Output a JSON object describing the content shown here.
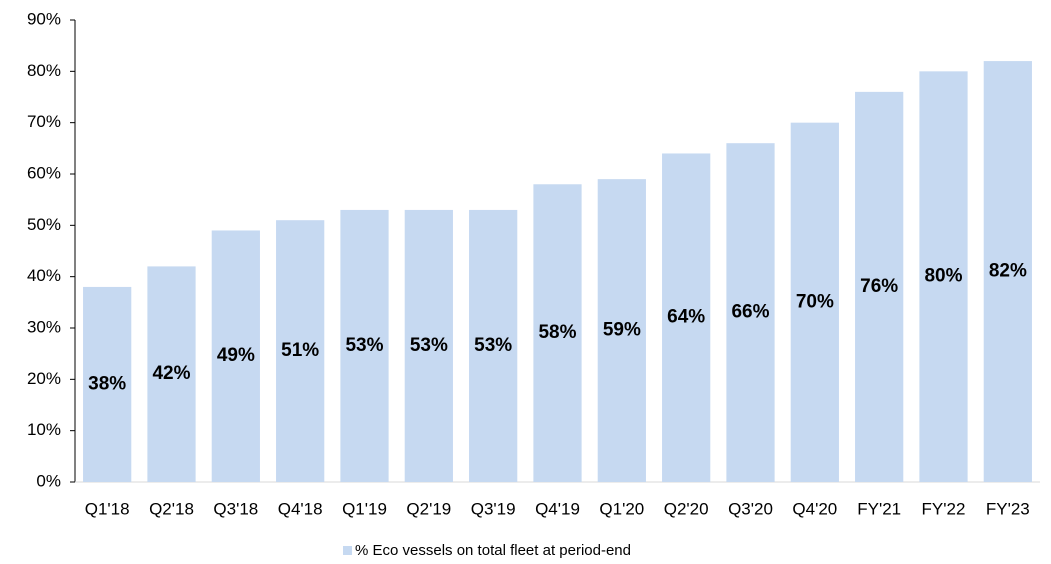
{
  "chart_data": {
    "type": "bar",
    "categories": [
      "Q1'18",
      "Q2'18",
      "Q3'18",
      "Q4'18",
      "Q1'19",
      "Q2'19",
      "Q3'19",
      "Q4'19",
      "Q1'20",
      "Q2'20",
      "Q3'20",
      "Q4'20",
      "FY'21",
      "FY'22",
      "FY'23"
    ],
    "series": [
      {
        "name": "% Eco vessels on total fleet at period-end",
        "color": "#c6d9f1",
        "values": [
          38,
          42,
          49,
          51,
          53,
          53,
          53,
          58,
          59,
          64,
          66,
          70,
          76,
          80,
          82
        ],
        "value_labels": [
          "38%",
          "42%",
          "49%",
          "51%",
          "53%",
          "53%",
          "53%",
          "58%",
          "59%",
          "64%",
          "66%",
          "70%",
          "76%",
          "80%",
          "82%"
        ]
      }
    ],
    "ylim": [
      0,
      90
    ],
    "yticks": [
      {
        "value": 0,
        "label": "0%"
      },
      {
        "value": 10,
        "label": "10%"
      },
      {
        "value": 20,
        "label": "20%"
      },
      {
        "value": 30,
        "label": "30%"
      },
      {
        "value": 40,
        "label": "40%"
      },
      {
        "value": 50,
        "label": "50%"
      },
      {
        "value": 60,
        "label": "60%"
      },
      {
        "value": 70,
        "label": "70%"
      },
      {
        "value": 80,
        "label": "80%"
      },
      {
        "value": 90,
        "label": "90%"
      }
    ],
    "grid": false,
    "legend": "bottom"
  }
}
